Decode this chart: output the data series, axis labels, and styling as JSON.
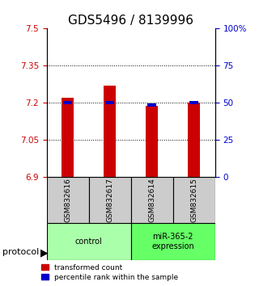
{
  "title": "GDS5496 / 8139996",
  "samples": [
    "GSM832616",
    "GSM832617",
    "GSM832614",
    "GSM832615"
  ],
  "red_values": [
    7.22,
    7.27,
    7.19,
    7.2
  ],
  "blue_values": [
    7.195,
    7.195,
    7.185,
    7.195
  ],
  "base_value": 6.9,
  "ylim_left": [
    6.9,
    7.5
  ],
  "yticks_left": [
    6.9,
    7.05,
    7.2,
    7.35,
    7.5
  ],
  "ytick_labels_left": [
    "6.9",
    "7.05",
    "7.2",
    "7.35",
    "7.5"
  ],
  "ylim_right": [
    0,
    100
  ],
  "yticks_right": [
    0,
    25,
    50,
    75,
    100
  ],
  "ytick_labels_right": [
    "0",
    "25",
    "50",
    "75",
    "100%"
  ],
  "groups": [
    {
      "label": "control",
      "samples": [
        0,
        1
      ],
      "color": "#aaffaa"
    },
    {
      "label": "miR-365-2\nexpression",
      "samples": [
        2,
        3
      ],
      "color": "#66ff66"
    }
  ],
  "bar_width": 0.4,
  "red_color": "#cc0000",
  "blue_color": "#0000cc",
  "sample_bg_color": "#cccccc",
  "legend_red_label": "transformed count",
  "legend_blue_label": "percentile rank within the sample",
  "protocol_label": "protocol",
  "title_fontsize": 11,
  "axis_fontsize": 8,
  "tick_fontsize": 7.5
}
